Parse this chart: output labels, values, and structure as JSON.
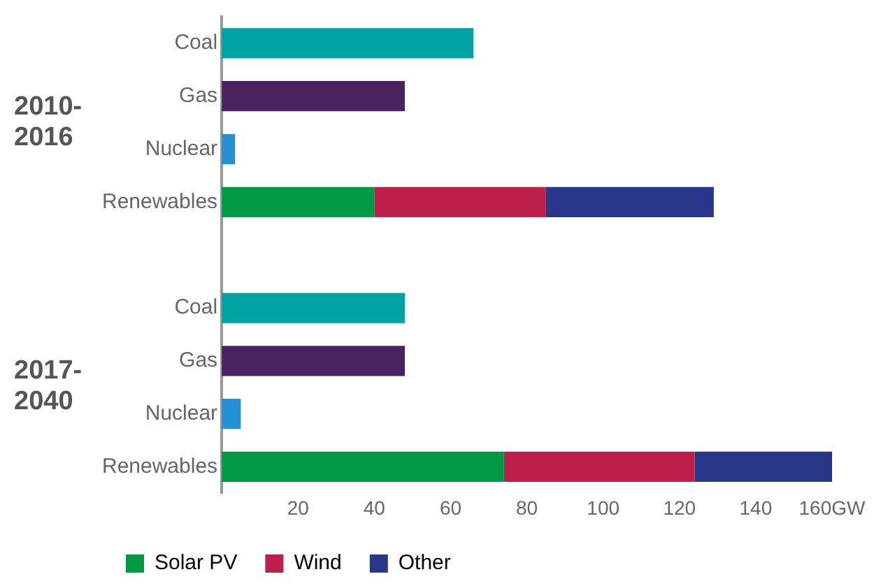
{
  "chart_data": {
    "type": "bar",
    "orientation": "horizontal",
    "stacked": true,
    "categories": [
      "Coal",
      "Gas",
      "Nuclear",
      "Renewables",
      null,
      "Coal",
      "Gas",
      "Nuclear",
      "Renewables"
    ],
    "series": [
      {
        "colors": [
          "#00a3a3",
          "#4a2262",
          "#2391d3",
          null,
          null,
          "#00a3a3",
          "#4a2262",
          "#2391d3",
          null
        ],
        "values": [
          66,
          48,
          3.5,
          null,
          null,
          48,
          48,
          5,
          null
        ]
      },
      {
        "name": "Solar PV",
        "color": "#009a44",
        "values": [
          null,
          null,
          null,
          40,
          null,
          null,
          null,
          null,
          74
        ]
      },
      {
        "name": "Wind",
        "color": "#bc1f4a",
        "values": [
          null,
          null,
          null,
          45,
          null,
          null,
          null,
          null,
          50
        ]
      },
      {
        "name": "Other",
        "color": "#27388b",
        "values": [
          null,
          null,
          null,
          44,
          null,
          null,
          null,
          null,
          36
        ]
      }
    ],
    "xlim": [
      0,
      160
    ],
    "xticks": [
      20,
      40,
      60,
      80,
      100,
      120,
      140,
      {
        "value": 160,
        "label": "160GW"
      }
    ],
    "grid": false,
    "legend": "bottom left",
    "annotations": [
      "2010-2016",
      "2017-2040"
    ]
  }
}
